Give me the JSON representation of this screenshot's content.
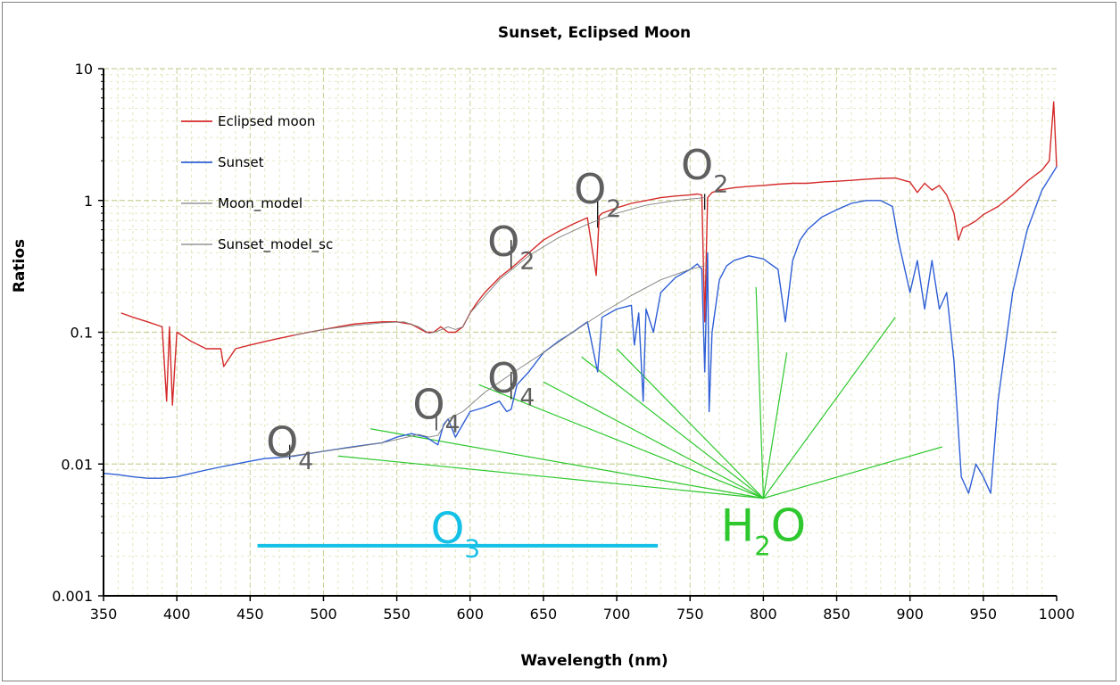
{
  "chart_data": {
    "type": "line",
    "title": "Sunset, Eclipsed Moon",
    "xlabel": "Wavelength (nm)",
    "ylabel": "Ratios",
    "xlim": [
      350,
      1000
    ],
    "ylim": [
      0.001,
      10
    ],
    "yscale": "log",
    "grid": true,
    "legend_position": "top-left",
    "x_ticks": [
      "350",
      "400",
      "450",
      "500",
      "550",
      "600",
      "650",
      "700",
      "750",
      "800",
      "850",
      "900",
      "950",
      "1000"
    ],
    "y_ticks": [
      "0.001",
      "0.01",
      "0.1",
      "1",
      "10"
    ],
    "series": [
      {
        "name": "Eclipsed moon",
        "color": "#d42a2a",
        "x": [
          362,
          370,
          380,
          390,
          393,
          395,
          397,
          400,
          410,
          420,
          430,
          432,
          440,
          450,
          460,
          470,
          480,
          490,
          500,
          510,
          520,
          530,
          540,
          550,
          560,
          570,
          575,
          580,
          585,
          590,
          595,
          600,
          605,
          610,
          620,
          630,
          640,
          650,
          660,
          670,
          680,
          686,
          688,
          690,
          700,
          710,
          720,
          730,
          740,
          750,
          755,
          758,
          760,
          762,
          765,
          770,
          780,
          790,
          800,
          810,
          820,
          830,
          840,
          850,
          860,
          870,
          880,
          890,
          900,
          905,
          910,
          915,
          920,
          925,
          930,
          933,
          936,
          940,
          945,
          950,
          960,
          970,
          980,
          990,
          995,
          998,
          1000
        ],
        "y": [
          0.14,
          0.13,
          0.12,
          0.11,
          0.03,
          0.11,
          0.028,
          0.1,
          0.085,
          0.075,
          0.075,
          0.055,
          0.075,
          0.08,
          0.085,
          0.09,
          0.095,
          0.1,
          0.105,
          0.11,
          0.115,
          0.118,
          0.12,
          0.12,
          0.115,
          0.1,
          0.1,
          0.11,
          0.1,
          0.1,
          0.11,
          0.14,
          0.17,
          0.2,
          0.26,
          0.32,
          0.4,
          0.5,
          0.58,
          0.66,
          0.74,
          0.27,
          0.76,
          0.8,
          0.88,
          0.95,
          1.0,
          1.05,
          1.08,
          1.1,
          1.12,
          1.1,
          0.12,
          1.05,
          1.15,
          1.2,
          1.25,
          1.28,
          1.3,
          1.33,
          1.35,
          1.35,
          1.38,
          1.4,
          1.42,
          1.45,
          1.47,
          1.48,
          1.38,
          1.15,
          1.35,
          1.2,
          1.3,
          1.1,
          0.8,
          0.5,
          0.62,
          0.65,
          0.7,
          0.78,
          0.9,
          1.1,
          1.4,
          1.7,
          2.0,
          5.6,
          1.8
        ]
      },
      {
        "name": "Sunset",
        "color": "#2f5fd6",
        "x": [
          350,
          360,
          370,
          380,
          390,
          400,
          410,
          420,
          430,
          440,
          450,
          460,
          470,
          480,
          490,
          500,
          510,
          520,
          530,
          540,
          550,
          560,
          570,
          578,
          582,
          585,
          590,
          600,
          610,
          620,
          625,
          628,
          632,
          640,
          650,
          660,
          670,
          680,
          687,
          690,
          700,
          710,
          712,
          715,
          718,
          720,
          725,
          730,
          740,
          750,
          755,
          758,
          760,
          762,
          763,
          765,
          770,
          775,
          780,
          790,
          800,
          810,
          815,
          820,
          825,
          830,
          840,
          850,
          860,
          870,
          880,
          888,
          892,
          900,
          905,
          910,
          915,
          920,
          925,
          930,
          935,
          940,
          945,
          950,
          955,
          960,
          970,
          980,
          990,
          1000
        ],
        "y": [
          0.0085,
          0.0083,
          0.008,
          0.0078,
          0.0078,
          0.008,
          0.0085,
          0.009,
          0.0095,
          0.01,
          0.0105,
          0.011,
          0.0112,
          0.0115,
          0.012,
          0.0125,
          0.013,
          0.0135,
          0.014,
          0.0145,
          0.016,
          0.017,
          0.016,
          0.014,
          0.02,
          0.022,
          0.016,
          0.025,
          0.027,
          0.03,
          0.025,
          0.026,
          0.04,
          0.05,
          0.07,
          0.085,
          0.1,
          0.12,
          0.05,
          0.13,
          0.15,
          0.16,
          0.08,
          0.14,
          0.03,
          0.15,
          0.1,
          0.2,
          0.26,
          0.3,
          0.33,
          0.3,
          0.05,
          0.4,
          0.025,
          0.1,
          0.25,
          0.32,
          0.35,
          0.38,
          0.36,
          0.3,
          0.12,
          0.35,
          0.5,
          0.6,
          0.75,
          0.85,
          0.95,
          1.0,
          1.0,
          0.9,
          0.5,
          0.2,
          0.35,
          0.15,
          0.35,
          0.15,
          0.2,
          0.06,
          0.008,
          0.006,
          0.01,
          0.008,
          0.006,
          0.03,
          0.2,
          0.6,
          1.2,
          1.8
        ]
      },
      {
        "name": "Moon_model",
        "color": "#808080",
        "x": [
          480,
          500,
          520,
          540,
          555,
          565,
          572,
          578,
          585,
          590,
          595,
          600,
          620,
          640,
          660,
          680,
          700,
          720,
          740,
          760
        ],
        "y": [
          0.095,
          0.105,
          0.112,
          0.118,
          0.12,
          0.11,
          0.098,
          0.102,
          0.11,
          0.105,
          0.11,
          0.14,
          0.25,
          0.38,
          0.52,
          0.66,
          0.8,
          0.92,
          1.0,
          1.05
        ]
      },
      {
        "name": "Sunset_model_sc",
        "color": "#808080",
        "x": [
          470,
          500,
          520,
          540,
          555,
          565,
          572,
          578,
          585,
          595,
          610,
          630,
          650,
          670,
          690,
          710,
          730,
          750,
          760
        ],
        "y": [
          0.0112,
          0.0125,
          0.0134,
          0.0145,
          0.0158,
          0.0168,
          0.016,
          0.0165,
          0.022,
          0.025,
          0.035,
          0.05,
          0.07,
          0.1,
          0.14,
          0.19,
          0.25,
          0.3,
          0.32
        ]
      }
    ],
    "annotations": [
      {
        "text": "O",
        "sub": "2",
        "x": 760,
        "y": 1.45,
        "color": "#5f5f5f"
      },
      {
        "text": "O",
        "sub": "2",
        "x": 687,
        "y": 0.95,
        "color": "#5f5f5f"
      },
      {
        "text": "O",
        "sub": "2",
        "x": 628,
        "y": 0.38,
        "color": "#5f5f5f"
      },
      {
        "text": "O",
        "sub": "4",
        "x": 628,
        "y": 0.035,
        "color": "#5f5f5f"
      },
      {
        "text": "O",
        "sub": "4",
        "x": 577,
        "y": 0.022,
        "color": "#5f5f5f"
      },
      {
        "text": "O",
        "sub": "4",
        "x": 477,
        "y": 0.0115,
        "color": "#5f5f5f"
      },
      {
        "text": "O",
        "sub": "3",
        "x": 590,
        "y": 0.0025,
        "color": "#15c0e6"
      },
      {
        "text": "H",
        "sub": "2",
        "tail": "O",
        "x": 800,
        "y": 0.0026,
        "color": "#2ec82e"
      }
    ],
    "o3_band": {
      "x_start": 455,
      "x_end": 728,
      "y": 0.0024,
      "color": "#15c0e6"
    },
    "h2o_pointers": {
      "origin": [
        800,
        0.0055
      ],
      "color": "#2ec82e",
      "targets": [
        [
          510,
          0.0115
        ],
        [
          532,
          0.0185
        ],
        [
          606,
          0.04
        ],
        [
          650,
          0.042
        ],
        [
          676,
          0.065
        ],
        [
          700,
          0.075
        ],
        [
          795,
          0.22
        ],
        [
          816,
          0.07
        ],
        [
          890,
          0.13
        ],
        [
          922,
          0.0135
        ]
      ]
    },
    "molecule_ticks": [
      {
        "x": 760,
        "y1": 1.12,
        "y2": 0.85
      },
      {
        "x": 687,
        "y1": 1.0,
        "y2": 0.62
      },
      {
        "x": 628,
        "y1": 0.5,
        "y2": 0.3
      },
      {
        "x": 628,
        "y1": 0.05,
        "y2": 0.031
      },
      {
        "x": 577,
        "y1": 0.025,
        "y2": 0.018
      },
      {
        "x": 477,
        "y1": 0.014,
        "y2": 0.0108
      }
    ]
  }
}
